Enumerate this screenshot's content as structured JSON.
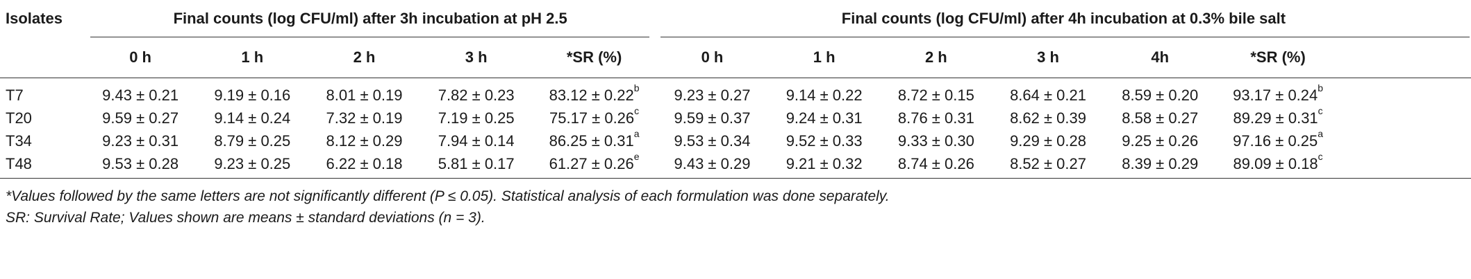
{
  "table": {
    "header": {
      "isolates": "Isolates",
      "group_acid": "Final counts (log CFU/ml) after 3h incubation at pH 2.5",
      "group_bile": "Final counts (log CFU/ml) after 4h incubation at 0.3% bile salt",
      "acid_cols": [
        "0 h",
        "1 h",
        "2 h",
        "3 h",
        "*SR (%)"
      ],
      "bile_cols": [
        "0 h",
        "1 h",
        "2 h",
        "3 h",
        "4h",
        "*SR (%)"
      ]
    },
    "rows": [
      {
        "isolate": "T7",
        "acid": [
          "9.43 ± 0.21",
          "9.19 ± 0.16",
          "8.01 ± 0.19",
          "7.82 ± 0.23"
        ],
        "acid_sr": "83.12 ± 0.22",
        "acid_sr_sup": "b",
        "bile": [
          "9.23 ± 0.27",
          "9.14 ± 0.22",
          "8.72 ± 0.15",
          "8.64 ± 0.21",
          "8.59 ± 0.20"
        ],
        "bile_sr": "93.17 ± 0.24",
        "bile_sr_sup": "b"
      },
      {
        "isolate": "T20",
        "acid": [
          "9.59 ± 0.27",
          "9.14 ± 0.24",
          "7.32 ± 0.19",
          "7.19 ± 0.25"
        ],
        "acid_sr": "75.17 ± 0.26",
        "acid_sr_sup": "c",
        "bile": [
          "9.59 ± 0.37",
          "9.24 ± 0.31",
          "8.76 ± 0.31",
          "8.62 ± 0.39",
          "8.58 ± 0.27"
        ],
        "bile_sr": "89.29 ± 0.31",
        "bile_sr_sup": "c"
      },
      {
        "isolate": "T34",
        "acid": [
          "9.23 ± 0.31",
          "8.79 ± 0.25",
          "8.12 ± 0.29",
          "7.94 ± 0.14"
        ],
        "acid_sr": "86.25 ± 0.31",
        "acid_sr_sup": "a",
        "bile": [
          "9.53 ± 0.34",
          "9.52 ± 0.33",
          "9.33 ± 0.30",
          "9.29 ± 0.28",
          "9.25 ± 0.26"
        ],
        "bile_sr": "97.16 ± 0.25",
        "bile_sr_sup": "a"
      },
      {
        "isolate": "T48",
        "acid": [
          "9.53 ± 0.28",
          "9.23 ± 0.25",
          "6.22 ± 0.18",
          "5.81 ± 0.17"
        ],
        "acid_sr": "61.27 ± 0.26",
        "acid_sr_sup": "e",
        "bile": [
          "9.43 ± 0.29",
          "9.21 ± 0.32",
          "8.74 ± 0.26",
          "8.52 ± 0.27",
          "8.39 ± 0.29"
        ],
        "bile_sr": "89.09 ± 0.18",
        "bile_sr_sup": "c"
      }
    ]
  },
  "notes": [
    "*Values followed by the same letters are not significantly different (P ≤  0.05). Statistical analysis of each formulation was done separately.",
    "SR: Survival Rate; Values shown are means ± standard deviations (n = 3)."
  ]
}
